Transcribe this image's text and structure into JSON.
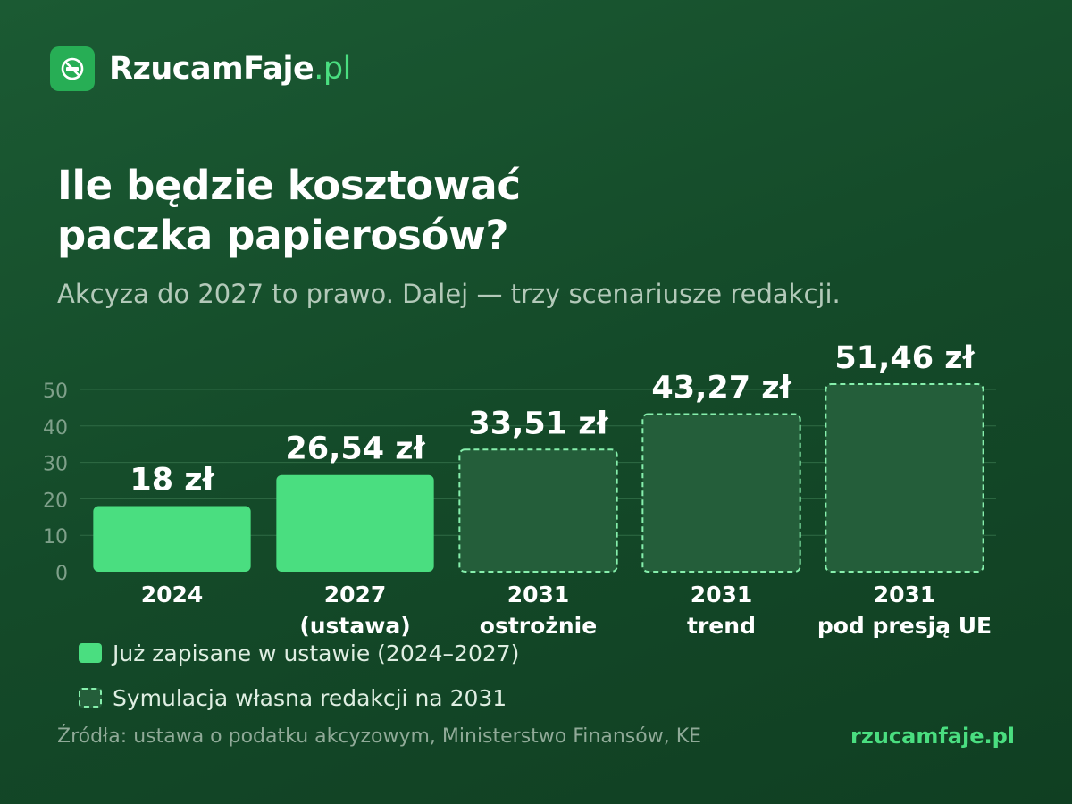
{
  "brand": {
    "name": "RzucamFaje",
    "tld": ".pl",
    "logo_icon": "no-smoking-icon"
  },
  "title_lines": [
    "Ile będzie kosztować",
    "paczka papierosów?"
  ],
  "subtitle": "Akcyza do 2027 to prawo. Dalej — trzy scenariusze redakcji.",
  "chart_data": {
    "type": "bar",
    "categories": [
      [
        "2024"
      ],
      [
        "2027",
        "(ustawa)"
      ],
      [
        "2031",
        "ostrożnie"
      ],
      [
        "2031",
        "trend"
      ],
      [
        "2031",
        "pod presją UE"
      ]
    ],
    "values": [
      18,
      26.54,
      33.51,
      43.27,
      51.46
    ],
    "value_labels": [
      "18 zł",
      "26,54 zł",
      "33,51 zł",
      "43,27 zł",
      "51,46 zł"
    ],
    "bar_styles": [
      "solid",
      "solid",
      "dashed",
      "dashed",
      "dashed"
    ],
    "ylim": [
      0,
      50
    ],
    "yticks": [
      0,
      10,
      20,
      30,
      40,
      50
    ],
    "grid": true,
    "colors": {
      "solid": "#4ade80",
      "dashed_fill": "#245e3a",
      "dashed_stroke": "#86efac"
    }
  },
  "legend": [
    {
      "style": "solid",
      "label": "Już zapisane w ustawie (2024–2027)"
    },
    {
      "style": "dashed",
      "label": "Symulacja własna redakcji na 2031"
    }
  ],
  "footer": {
    "sources": "Źródła: ustawa o podatku akcyzowym, Ministerstwo Finansów, KE",
    "site": "rzucamfaje.pl"
  }
}
